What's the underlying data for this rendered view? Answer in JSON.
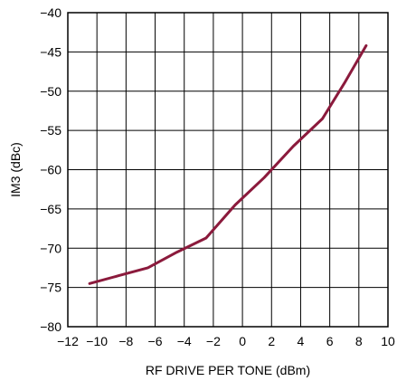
{
  "chart_data": {
    "type": "line",
    "title": "",
    "xlabel": "RF DRIVE PER TONE (dBm)",
    "ylabel": "IM3 (dBc)",
    "xlim": [
      -12,
      10
    ],
    "ylim": [
      -80,
      -40
    ],
    "x_ticks": [
      -12,
      -10,
      -8,
      -6,
      -4,
      -2,
      0,
      2,
      4,
      6,
      8,
      10
    ],
    "x_tick_labels": [
      "−12",
      "−10",
      "−8",
      "−6",
      "−4",
      "−2",
      "0",
      "2",
      "4",
      "6",
      "8",
      "10"
    ],
    "y_ticks": [
      -40,
      -45,
      -50,
      -55,
      -60,
      -65,
      -70,
      -75,
      -80
    ],
    "y_tick_labels": [
      "−40",
      "−45",
      "−50",
      "−55",
      "−60",
      "−65",
      "−70",
      "−75",
      "−80"
    ],
    "grid": true,
    "colors": {
      "line": "#8b1a3c",
      "grid": "#000000",
      "frame": "#000000"
    },
    "series": [
      {
        "x": [
          -10.5,
          -8.5,
          -6.5,
          -4.5,
          -2.5,
          -0.5,
          1.5,
          3.5,
          5.5,
          7.0,
          8.5
        ],
        "y": [
          -74.5,
          -73.5,
          -72.5,
          -70.5,
          -68.7,
          -64.5,
          -61.0,
          -57.0,
          -53.5,
          -49.0,
          -44.2
        ]
      }
    ]
  }
}
